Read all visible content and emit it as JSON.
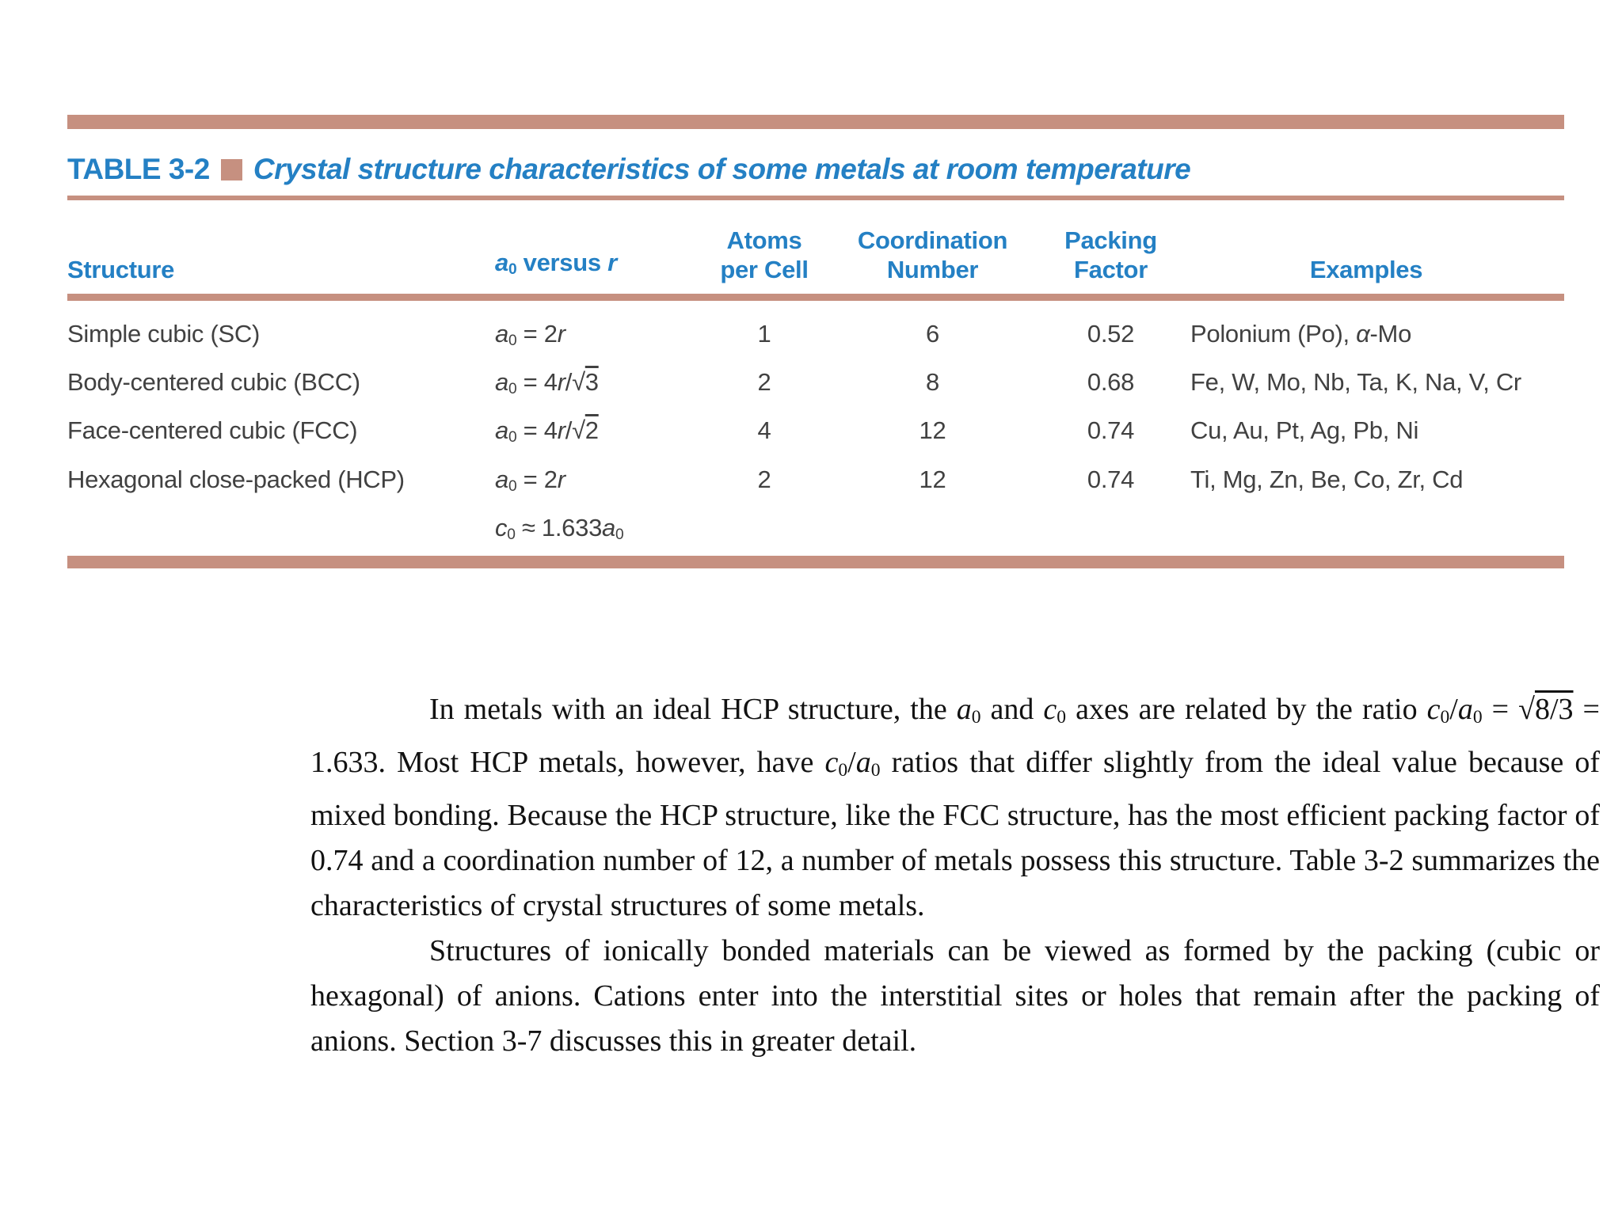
{
  "colors": {
    "tan": "#c69080",
    "blue": "#2480c4",
    "table_text": "#414141",
    "body_text": "#121212",
    "page_bg": "#ffffff"
  },
  "table": {
    "label": "TABLE 3-2",
    "title": "Crystal structure characteristics of some metals at room temperature",
    "header": {
      "structure": "Structure",
      "a0_versus_r": "<i>a</i><sub>0</sub> versus <i>r</i>",
      "atoms_per_cell": "Atoms\nper Cell",
      "coordination_number": "Coordination\nNumber",
      "packing_factor": "Packing\nFactor",
      "examples": "Examples"
    },
    "rows": [
      {
        "structure": "Simple cubic (SC)",
        "a0_versus_r": "<i>a</i><sub>0</sub> = 2<i>r</i>",
        "atoms_per_cell": "1",
        "coordination_number": "6",
        "packing_factor": "0.52",
        "examples": "Polonium (Po), <i>α</i>-Mo"
      },
      {
        "structure": "Body-centered cubic (BCC)",
        "a0_versus_r": "<i>a</i><sub>0</sub> = 4<i>r</i>/√<span class='ov'>3</span>",
        "atoms_per_cell": "2",
        "coordination_number": "8",
        "packing_factor": "0.68",
        "examples": "Fe, W, Mo, Nb, Ta, K, Na, V, Cr"
      },
      {
        "structure": "Face-centered cubic (FCC)",
        "a0_versus_r": "<i>a</i><sub>0</sub> = 4<i>r</i>/√<span class='ov'>2</span>",
        "atoms_per_cell": "4",
        "coordination_number": "12",
        "packing_factor": "0.74",
        "examples": "Cu, Au, Pt, Ag, Pb, Ni"
      },
      {
        "structure": "Hexagonal close-packed (HCP)",
        "a0_versus_r": "<i>a</i><sub>0</sub> = 2<i>r</i>",
        "atoms_per_cell": "2",
        "coordination_number": "12",
        "packing_factor": "0.74",
        "examples": "Ti, Mg, Zn, Be, Co, Zr, Cd"
      }
    ],
    "footnote_formula": "<i>c</i><sub>0</sub> ≈ 1.633<i>a</i><sub>0</sub>"
  },
  "body": {
    "paragraph_1": "In metals with an ideal HCP structure, the <i>a</i><sub>0</sub> and <i>c</i><sub>0</sub> axes are related by the ratio <i>c</i><sub>0</sub>/<i>a</i><sub>0</sub> = √<span class='ov'>8/3</span> = 1.633. Most HCP metals, however, have <i>c</i><sub>0</sub>/<i>a</i><sub>0</sub> ratios that differ slightly from the ideal value because of mixed bonding. Because the HCP structure, like the FCC structure, has the most efficient packing factor of 0.74 and a coordination number of 12, a number of metals possess this structure. Table 3-2 summarizes the characteristics of crystal structures of some metals.",
    "paragraph_2": "Structures of ionically bonded materials can be viewed as formed by the packing (cubic or hexagonal) of anions. Cations enter into the interstitial sites or holes that remain after the packing of anions. Section 3-7 discusses this in greater detail."
  }
}
